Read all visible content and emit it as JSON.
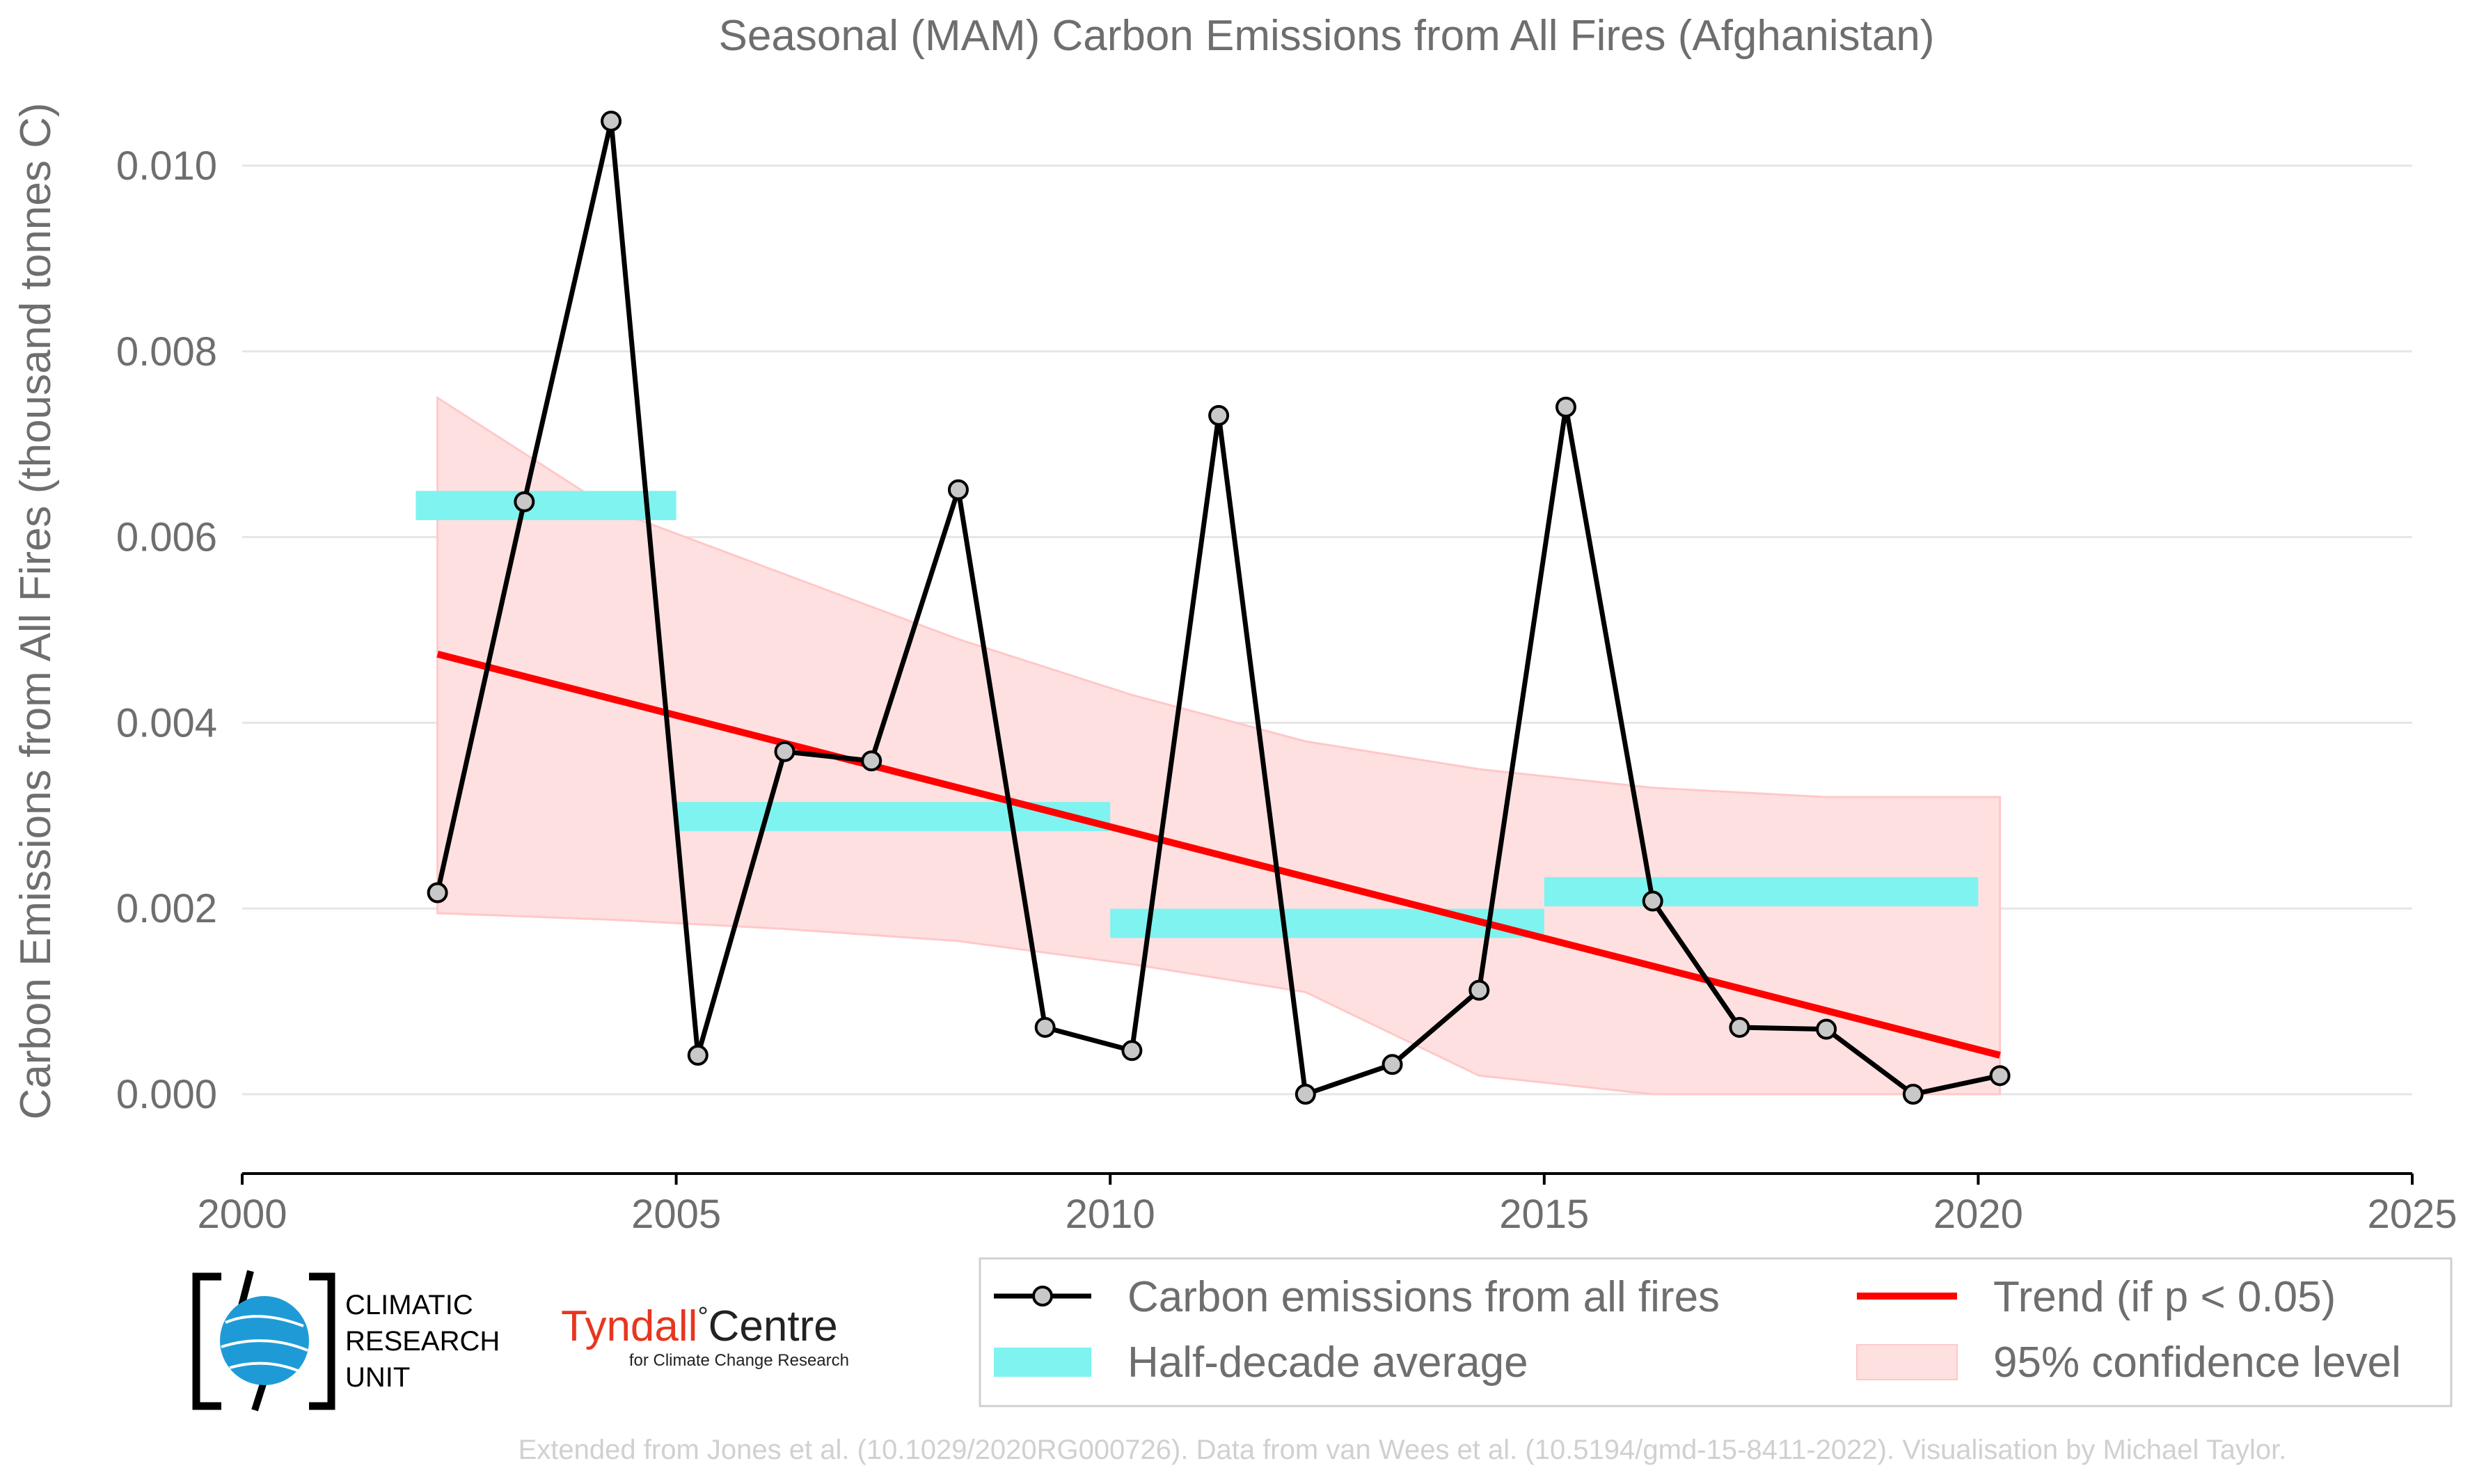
{
  "title": "Seasonal (MAM) Carbon Emissions from All Fires (Afghanistan)",
  "ylabel": "Carbon Emissions from All Fires (thousand tonnes C)",
  "credit": "Extended from Jones et al. (10.1029/2020RG000726). Data from van Wees et al. (10.5194/gmd-15-8411-2022). Visualisation by Michael Taylor.",
  "logos": {
    "cru_lines": [
      "CLIMATIC",
      "RESEARCH",
      "UNIT"
    ],
    "tyndall_main": "Tyndall",
    "tyndall_degree": "°",
    "tyndall_centre": "Centre",
    "tyndall_sub": "for Climate Change Research"
  },
  "legend": {
    "series": "Carbon emissions from all fires",
    "halfdecade": "Half-decade average",
    "trend": "Trend (if p < 0.05)",
    "ci": "95% confidence level"
  },
  "colors": {
    "series": "#000000",
    "marker_fill": "#c8c8c8",
    "halfdecade": "#7ff3ef",
    "trend": "#ff0000",
    "ci_fill": "#ffe0e0",
    "ci_edge": "#ffc8c8",
    "grid": "#e6e6e6",
    "text": "#6e6e6e",
    "cru_blue": "#1e9bd7",
    "tyndall_red": "#e8361e"
  },
  "chart_data": {
    "type": "line",
    "title": "Seasonal (MAM) Carbon Emissions from All Fires (Afghanistan)",
    "xlabel": "",
    "ylabel": "Carbon Emissions from All Fires (thousand tonnes C)",
    "xlim": [
      2000,
      2025
    ],
    "ylim": [
      -0.0009,
      0.0105
    ],
    "xticks": [
      2000,
      2005,
      2010,
      2015,
      2020,
      2025
    ],
    "xtick_labels": [
      "2000",
      "2005",
      "2010",
      "2015",
      "2020",
      "2025"
    ],
    "yticks": [
      0.0,
      0.002,
      0.004,
      0.006,
      0.008,
      0.01
    ],
    "ytick_labels": [
      "0.000",
      "0.002",
      "0.004",
      "0.006",
      "0.008",
      "0.010"
    ],
    "grid": "horizontal",
    "legend_position": "bottom",
    "series": [
      {
        "name": "Carbon emissions from all fires",
        "x": [
          2002.25,
          2003.25,
          2004.25,
          2005.25,
          2006.25,
          2007.25,
          2008.25,
          2009.25,
          2010.25,
          2011.25,
          2012.25,
          2013.25,
          2014.25,
          2015.25,
          2016.25,
          2017.25,
          2018.25,
          2019.25,
          2020.25
        ],
        "y": [
          0.00217,
          0.00638,
          0.01048,
          0.00042,
          0.00369,
          0.00359,
          0.00651,
          0.00072,
          0.00047,
          0.00731,
          0.0,
          0.00032,
          0.00112,
          0.0074,
          0.00208,
          0.00072,
          0.0007,
          0.0,
          0.0002
        ]
      }
    ],
    "half_decade_averages": [
      {
        "x_start": 2002.0,
        "x_end": 2005.0,
        "value": 0.00634
      },
      {
        "x_start": 2005.0,
        "x_end": 2010.0,
        "value": 0.00299
      },
      {
        "x_start": 2010.0,
        "x_end": 2015.0,
        "value": 0.00184
      },
      {
        "x_start": 2015.0,
        "x_end": 2020.0,
        "value": 0.00218
      }
    ],
    "trend": {
      "x": [
        2002.25,
        2020.25
      ],
      "y": [
        0.00474,
        0.00042
      ]
    },
    "confidence_band": {
      "x": [
        2002.25,
        2004.25,
        2006.25,
        2008.25,
        2010.25,
        2012.25,
        2014.25,
        2016.25,
        2018.25,
        2020.25
      ],
      "upper": [
        0.0075,
        0.0063,
        0.0056,
        0.0049,
        0.0043,
        0.0038,
        0.0035,
        0.0033,
        0.0032,
        0.0032
      ],
      "lower": [
        0.00195,
        0.00188,
        0.00178,
        0.00165,
        0.0014,
        0.0011,
        0.0002,
        0.0,
        0.0,
        0.0
      ]
    }
  }
}
